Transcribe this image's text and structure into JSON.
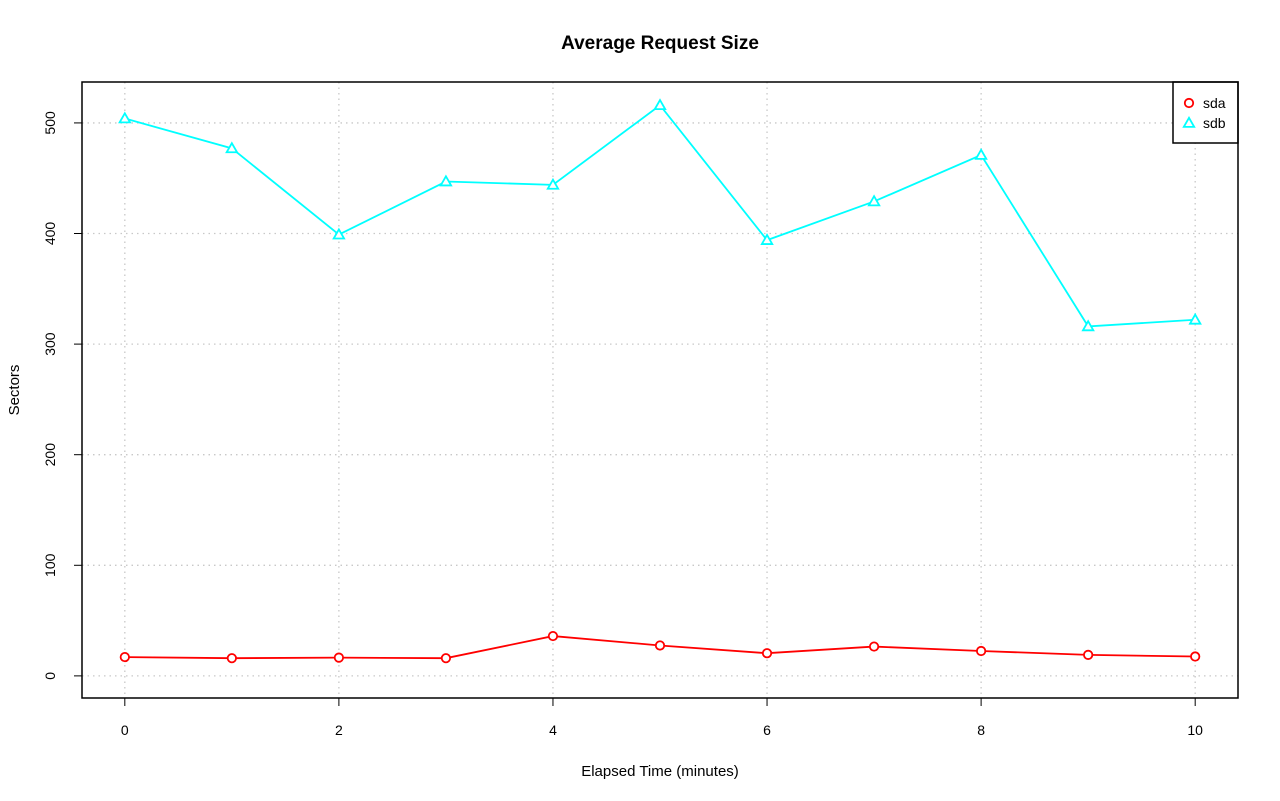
{
  "chart_data": {
    "type": "line",
    "title": "Average Request Size",
    "xlabel": "Elapsed Time (minutes)",
    "ylabel": "Sectors",
    "x": [
      0,
      1,
      2,
      3,
      4,
      5,
      6,
      7,
      8,
      9,
      10
    ],
    "xlim": [
      -0.4,
      10.4
    ],
    "ylim": [
      -20,
      537
    ],
    "x_ticks": [
      0,
      2,
      4,
      6,
      8,
      10
    ],
    "y_ticks": [
      0,
      100,
      200,
      300,
      400,
      500
    ],
    "grid": true,
    "legend_position": "top-right",
    "series": [
      {
        "name": "sda",
        "color": "#ff0000",
        "marker": "circle",
        "values": [
          17,
          16,
          16.5,
          16,
          36,
          27.5,
          20.5,
          26.5,
          22.5,
          19,
          17.5
        ]
      },
      {
        "name": "sdb",
        "color": "#00ffff",
        "marker": "triangle",
        "values": [
          504,
          477,
          399,
          447,
          444,
          516,
          394,
          429,
          471,
          316,
          322
        ]
      }
    ]
  }
}
